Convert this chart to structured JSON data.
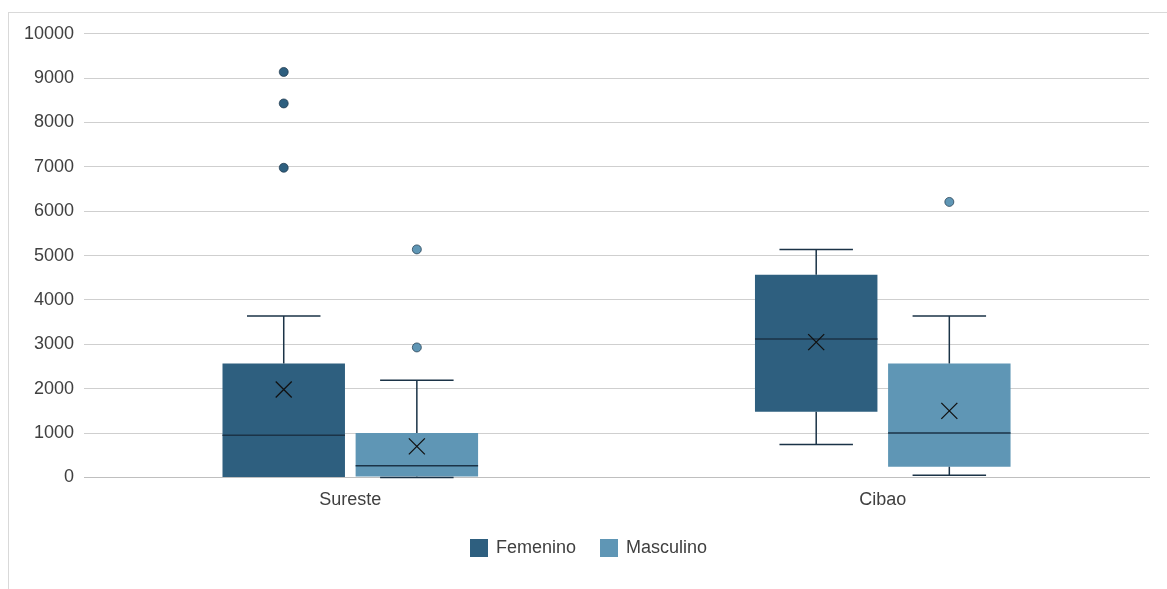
{
  "chart_data": {
    "type": "box",
    "categories": [
      "Sureste",
      "Cibao"
    ],
    "series": [
      {
        "name": "Femenino",
        "color": "#2e5f7f",
        "boxes": [
          {
            "low": 0,
            "q1": 0,
            "median": 950,
            "q3": 2570,
            "high": 3640,
            "mean": 1980,
            "outliers": [
              9140,
              8430,
              6980
            ]
          },
          {
            "low": 740,
            "q1": 1480,
            "median": 3120,
            "q3": 4570,
            "high": 5140,
            "mean": 3050
          }
        ]
      },
      {
        "name": "Masculino",
        "color": "#5f96b5",
        "boxes": [
          {
            "low": 0,
            "q1": 20,
            "median": 260,
            "q3": 1000,
            "high": 2190,
            "mean": 700,
            "outliers": [
              5140,
              2930
            ]
          },
          {
            "low": 50,
            "q1": 240,
            "median": 1000,
            "q3": 2570,
            "high": 3640,
            "mean": 1500,
            "outliers": [
              6210
            ]
          }
        ]
      }
    ],
    "ylim": [
      0,
      10000
    ],
    "yticks": [
      0,
      1000,
      2000,
      3000,
      4000,
      5000,
      6000,
      7000,
      8000,
      9000,
      10000
    ],
    "grid": "y",
    "legend": "bottom"
  }
}
